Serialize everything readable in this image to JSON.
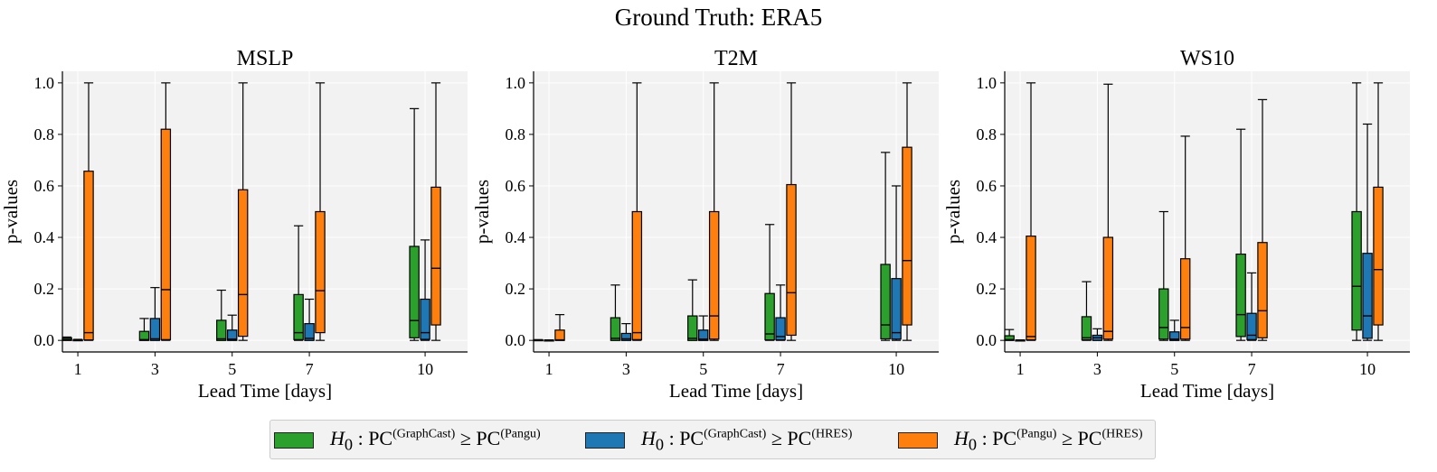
{
  "suptitle": "Ground Truth: ERA5",
  "colors": {
    "green": "#2ca02c",
    "blue": "#1f77b4",
    "orange": "#ff7f0e",
    "panel_bg": "#f2f2f2"
  },
  "legend": [
    {
      "symbol": "H",
      "sub": "0",
      "pc": "PC",
      "a": "(GraphCast)",
      "op": "≥",
      "b": "(Pangu)",
      "color": "#2ca02c"
    },
    {
      "symbol": "H",
      "sub": "0",
      "pc": "PC",
      "a": "(GraphCast)",
      "op": "≥",
      "b": "(HRES)",
      "color": "#1f77b4"
    },
    {
      "symbol": "H",
      "sub": "0",
      "pc": "PC",
      "a": "(Pangu)",
      "op": "≥",
      "b": "(HRES)",
      "color": "#ff7f0e"
    }
  ],
  "chart_data": [
    {
      "type": "box",
      "title": "MSLP",
      "xlabel": "Lead Time [days]",
      "ylabel": "p-values",
      "x": [
        1,
        3,
        5,
        7,
        10
      ],
      "xticklabels": [
        "1",
        "3",
        "5",
        "7",
        "10"
      ],
      "ylim": [
        -0.045,
        1.045
      ],
      "yticks": [
        0.0,
        0.2,
        0.4,
        0.6,
        0.8,
        1.0
      ],
      "yticklabels": [
        "0.0",
        "0.2",
        "0.4",
        "0.6",
        "0.8",
        "1.0"
      ],
      "grid": true,
      "series": [
        {
          "name": "GraphCast vs Pangu",
          "boxes": [
            {
              "whislo": 0.0,
              "q1": 0.0,
              "med": 0.003,
              "q3": 0.009,
              "whishi": 0.013
            },
            {
              "whislo": 0.0,
              "q1": 0.0,
              "med": 0.003,
              "q3": 0.035,
              "whishi": 0.085
            },
            {
              "whislo": 0.0,
              "q1": 0.0,
              "med": 0.006,
              "q3": 0.078,
              "whishi": 0.195
            },
            {
              "whislo": 0.0,
              "q1": 0.003,
              "med": 0.03,
              "q3": 0.178,
              "whishi": 0.445
            },
            {
              "whislo": 0.0,
              "q1": 0.01,
              "med": 0.077,
              "q3": 0.365,
              "whishi": 0.9
            }
          ]
        },
        {
          "name": "GraphCast vs HRES",
          "boxes": [
            {
              "whislo": 0.0,
              "q1": 0.0,
              "med": 0.001,
              "q3": 0.002,
              "whishi": 0.004
            },
            {
              "whislo": 0.0,
              "q1": 0.0,
              "med": 0.006,
              "q3": 0.085,
              "whishi": 0.205
            },
            {
              "whislo": 0.0,
              "q1": 0.0,
              "med": 0.005,
              "q3": 0.04,
              "whishi": 0.098
            },
            {
              "whislo": 0.0,
              "q1": 0.0,
              "med": 0.008,
              "q3": 0.065,
              "whishi": 0.16
            },
            {
              "whislo": 0.0,
              "q1": 0.004,
              "med": 0.03,
              "q3": 0.16,
              "whishi": 0.39
            }
          ]
        },
        {
          "name": "Pangu vs HRES",
          "boxes": [
            {
              "whislo": 0.0,
              "q1": 0.002,
              "med": 0.03,
              "q3": 0.657,
              "whishi": 1.0
            },
            {
              "whislo": 0.0,
              "q1": 0.003,
              "med": 0.197,
              "q3": 0.82,
              "whishi": 1.0
            },
            {
              "whislo": 0.0,
              "q1": 0.016,
              "med": 0.178,
              "q3": 0.585,
              "whishi": 1.0
            },
            {
              "whislo": 0.0,
              "q1": 0.03,
              "med": 0.193,
              "q3": 0.5,
              "whishi": 1.0
            },
            {
              "whislo": 0.0,
              "q1": 0.06,
              "med": 0.28,
              "q3": 0.595,
              "whishi": 1.0
            }
          ]
        }
      ]
    },
    {
      "type": "box",
      "title": "T2M",
      "xlabel": "Lead Time [days]",
      "ylabel": "p-values",
      "x": [
        1,
        3,
        5,
        7,
        10
      ],
      "xticklabels": [
        "1",
        "3",
        "5",
        "7",
        "10"
      ],
      "ylim": [
        -0.045,
        1.045
      ],
      "yticks": [
        0.0,
        0.2,
        0.4,
        0.6,
        0.8,
        1.0
      ],
      "yticklabels": [
        "0.0",
        "0.2",
        "0.4",
        "0.6",
        "0.8",
        "1.0"
      ],
      "grid": true,
      "series": [
        {
          "name": "GraphCast vs Pangu",
          "boxes": [
            {
              "whislo": 0.0,
              "q1": 0.0,
              "med": 0.001,
              "q3": 0.002,
              "whishi": 0.003
            },
            {
              "whislo": 0.0,
              "q1": 0.0,
              "med": 0.008,
              "q3": 0.088,
              "whishi": 0.215
            },
            {
              "whislo": 0.0,
              "q1": 0.0,
              "med": 0.008,
              "q3": 0.095,
              "whishi": 0.235
            },
            {
              "whislo": 0.0,
              "q1": 0.002,
              "med": 0.025,
              "q3": 0.182,
              "whishi": 0.45
            },
            {
              "whislo": 0.0,
              "q1": 0.006,
              "med": 0.06,
              "q3": 0.295,
              "whishi": 0.73
            }
          ]
        },
        {
          "name": "GraphCast vs HRES",
          "boxes": [
            {
              "whislo": 0.0,
              "q1": 0.0,
              "med": 0.0,
              "q3": 0.001,
              "whishi": 0.002
            },
            {
              "whislo": 0.0,
              "q1": 0.0,
              "med": 0.006,
              "q3": 0.027,
              "whishi": 0.065
            },
            {
              "whislo": 0.0,
              "q1": 0.0,
              "med": 0.005,
              "q3": 0.04,
              "whishi": 0.095
            },
            {
              "whislo": 0.0,
              "q1": 0.002,
              "med": 0.015,
              "q3": 0.088,
              "whishi": 0.215
            },
            {
              "whislo": 0.0,
              "q1": 0.005,
              "med": 0.03,
              "q3": 0.24,
              "whishi": 0.6
            }
          ]
        },
        {
          "name": "Pangu vs HRES",
          "boxes": [
            {
              "whislo": 0.0,
              "q1": 0.0,
              "med": 0.002,
              "q3": 0.04,
              "whishi": 0.1
            },
            {
              "whislo": 0.0,
              "q1": 0.003,
              "med": 0.03,
              "q3": 0.5,
              "whishi": 1.0
            },
            {
              "whislo": 0.0,
              "q1": 0.005,
              "med": 0.095,
              "q3": 0.5,
              "whishi": 1.0
            },
            {
              "whislo": 0.0,
              "q1": 0.02,
              "med": 0.185,
              "q3": 0.605,
              "whishi": 1.0
            },
            {
              "whislo": 0.0,
              "q1": 0.06,
              "med": 0.31,
              "q3": 0.75,
              "whishi": 1.0
            }
          ]
        }
      ]
    },
    {
      "type": "box",
      "title": "WS10",
      "xlabel": "Lead Time [days]",
      "ylabel": "p-values",
      "x": [
        1,
        3,
        5,
        7,
        10
      ],
      "xticklabels": [
        "1",
        "3",
        "5",
        "7",
        "10"
      ],
      "ylim": [
        -0.045,
        1.045
      ],
      "yticks": [
        0.0,
        0.2,
        0.4,
        0.6,
        0.8,
        1.0
      ],
      "yticklabels": [
        "0.0",
        "0.2",
        "0.4",
        "0.6",
        "0.8",
        "1.0"
      ],
      "grid": true,
      "series": [
        {
          "name": "GraphCast vs Pangu",
          "boxes": [
            {
              "whislo": 0.0,
              "q1": 0.0,
              "med": 0.003,
              "q3": 0.018,
              "whishi": 0.042
            },
            {
              "whislo": 0.0,
              "q1": 0.002,
              "med": 0.01,
              "q3": 0.092,
              "whishi": 0.228
            },
            {
              "whislo": 0.0,
              "q1": 0.005,
              "med": 0.05,
              "q3": 0.2,
              "whishi": 0.5
            },
            {
              "whislo": 0.0,
              "q1": 0.015,
              "med": 0.1,
              "q3": 0.335,
              "whishi": 0.82
            },
            {
              "whislo": 0.0,
              "q1": 0.04,
              "med": 0.21,
              "q3": 0.5,
              "whishi": 1.0
            }
          ]
        },
        {
          "name": "GraphCast vs HRES",
          "boxes": [
            {
              "whislo": 0.0,
              "q1": 0.0,
              "med": 0.0,
              "q3": 0.001,
              "whishi": 0.002
            },
            {
              "whislo": 0.0,
              "q1": 0.0,
              "med": 0.01,
              "q3": 0.02,
              "whishi": 0.045
            },
            {
              "whislo": 0.0,
              "q1": 0.0,
              "med": 0.005,
              "q3": 0.033,
              "whishi": 0.078
            },
            {
              "whislo": 0.0,
              "q1": 0.003,
              "med": 0.02,
              "q3": 0.105,
              "whishi": 0.262
            },
            {
              "whislo": 0.0,
              "q1": 0.008,
              "med": 0.095,
              "q3": 0.338,
              "whishi": 0.84
            }
          ]
        },
        {
          "name": "Pangu vs HRES",
          "boxes": [
            {
              "whislo": 0.0,
              "q1": 0.002,
              "med": 0.015,
              "q3": 0.405,
              "whishi": 1.0
            },
            {
              "whislo": 0.0,
              "q1": 0.005,
              "med": 0.035,
              "q3": 0.4,
              "whishi": 0.995
            },
            {
              "whislo": 0.0,
              "q1": 0.005,
              "med": 0.05,
              "q3": 0.317,
              "whishi": 0.793
            },
            {
              "whislo": 0.0,
              "q1": 0.01,
              "med": 0.115,
              "q3": 0.38,
              "whishi": 0.935
            },
            {
              "whislo": 0.0,
              "q1": 0.06,
              "med": 0.275,
              "q3": 0.595,
              "whishi": 1.0
            }
          ]
        }
      ]
    }
  ]
}
